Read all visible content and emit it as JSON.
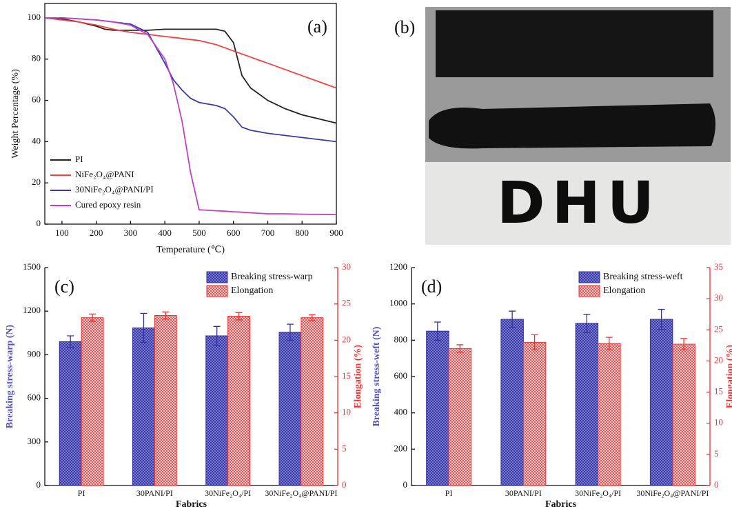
{
  "chart_data": [
    {
      "type": "line",
      "label": "(a)",
      "x_label": "Temperature (℃)",
      "y_label": "Weight Percentage (%)",
      "x": [
        50,
        100,
        150,
        200,
        225,
        250,
        300,
        350,
        400,
        425,
        450,
        475,
        500,
        550,
        575,
        600,
        625,
        650,
        700,
        750,
        800,
        850,
        900
      ],
      "series": [
        {
          "name": "PI",
          "color": "#222222",
          "values": [
            100,
            99.5,
            98,
            96,
            94.5,
            94,
            94,
            94,
            94.5,
            94.5,
            94.5,
            94.5,
            94.5,
            94.5,
            93.5,
            88,
            72,
            66,
            60,
            56,
            53,
            51,
            49
          ]
        },
        {
          "name": "NiFe₂O₄@PANI",
          "color": "#f04040",
          "values": [
            100,
            99,
            98,
            96.5,
            95.5,
            94.5,
            93,
            92,
            91,
            90.5,
            90,
            89.5,
            89,
            87,
            85.5,
            84,
            82.5,
            81,
            78,
            75,
            72,
            69,
            66
          ]
        },
        {
          "name": "30NiFe₂O₄@PANI/PI",
          "color": "#3a3aa8",
          "values": [
            100,
            100,
            99.5,
            99,
            98.5,
            98,
            97,
            93,
            78,
            70,
            65,
            61,
            59,
            57.5,
            56,
            52,
            47,
            45.5,
            44,
            43,
            42,
            41,
            40
          ]
        },
        {
          "name": "Cured epoxy resin",
          "color": "#c040c0",
          "values": [
            100,
            100,
            99.5,
            99,
            98.5,
            98,
            96.5,
            92,
            80,
            68,
            50,
            25,
            7,
            6.5,
            6.3,
            6,
            5.8,
            5.5,
            5,
            5,
            4.8,
            4.7,
            4.6
          ]
        }
      ],
      "xlim": [
        50,
        900
      ],
      "xticks": [
        100,
        200,
        300,
        400,
        500,
        600,
        700,
        800,
        900
      ],
      "ylim": [
        0,
        107
      ],
      "yticks": [
        0,
        20,
        40,
        60,
        80,
        100
      ],
      "legend": "lower left"
    },
    {
      "type": "bar",
      "label": "(c)",
      "x_label": "Fabrics",
      "y_label": "Breaking stress-warp (N)",
      "y2_label": "Elongation (%)",
      "categories": [
        "PI",
        "30PANI/PI",
        "30NiFe₂O₄/PI",
        "30NiFe₂O₄@PANI/PI"
      ],
      "series": [
        {
          "name": "Breaking stress-warp",
          "color": "#5050c8",
          "values": [
            990,
            1085,
            1030,
            1055
          ],
          "errors": [
            40,
            100,
            65,
            55
          ]
        },
        {
          "name": "Elongation",
          "color": "#f03030",
          "axis": "y2",
          "values": [
            23.1,
            23.4,
            23.3,
            23.1
          ],
          "errors": [
            0.5,
            0.5,
            0.5,
            0.4
          ]
        }
      ],
      "ylim": [
        0,
        1500
      ],
      "yticks": [
        0,
        300,
        600,
        900,
        1200,
        1500
      ],
      "y2lim": [
        0,
        30
      ],
      "y2ticks": [
        0,
        5,
        10,
        15,
        20,
        25,
        30
      ],
      "legend": "upper right"
    },
    {
      "type": "bar",
      "label": "(d)",
      "x_label": "Fabrics",
      "y_label": "Breaking stress-weft (N)",
      "y2_label": "Elongation (%)",
      "categories": [
        "PI",
        "30PANI/PI",
        "30NiFe₂O₄/PI",
        "30NiFe₂O₄@PANI/PI"
      ],
      "series": [
        {
          "name": "Breaking stress-weft",
          "color": "#5050c8",
          "values": [
            850,
            915,
            893,
            915
          ],
          "errors": [
            50,
            45,
            50,
            55
          ]
        },
        {
          "name": "Elongation",
          "color": "#f03030",
          "axis": "y2",
          "values": [
            22,
            23,
            22.8,
            22.7
          ],
          "errors": [
            0.6,
            1.2,
            1,
            0.9
          ]
        }
      ],
      "ylim": [
        0,
        1200
      ],
      "yticks": [
        0,
        200,
        400,
        600,
        800,
        1000,
        1200
      ],
      "y2lim": [
        0,
        35
      ],
      "y2ticks": [
        0,
        5,
        10,
        15,
        20,
        25,
        30,
        35
      ],
      "legend": "upper right"
    }
  ],
  "panel_b": {
    "label": "(b)",
    "text": "DHU"
  }
}
